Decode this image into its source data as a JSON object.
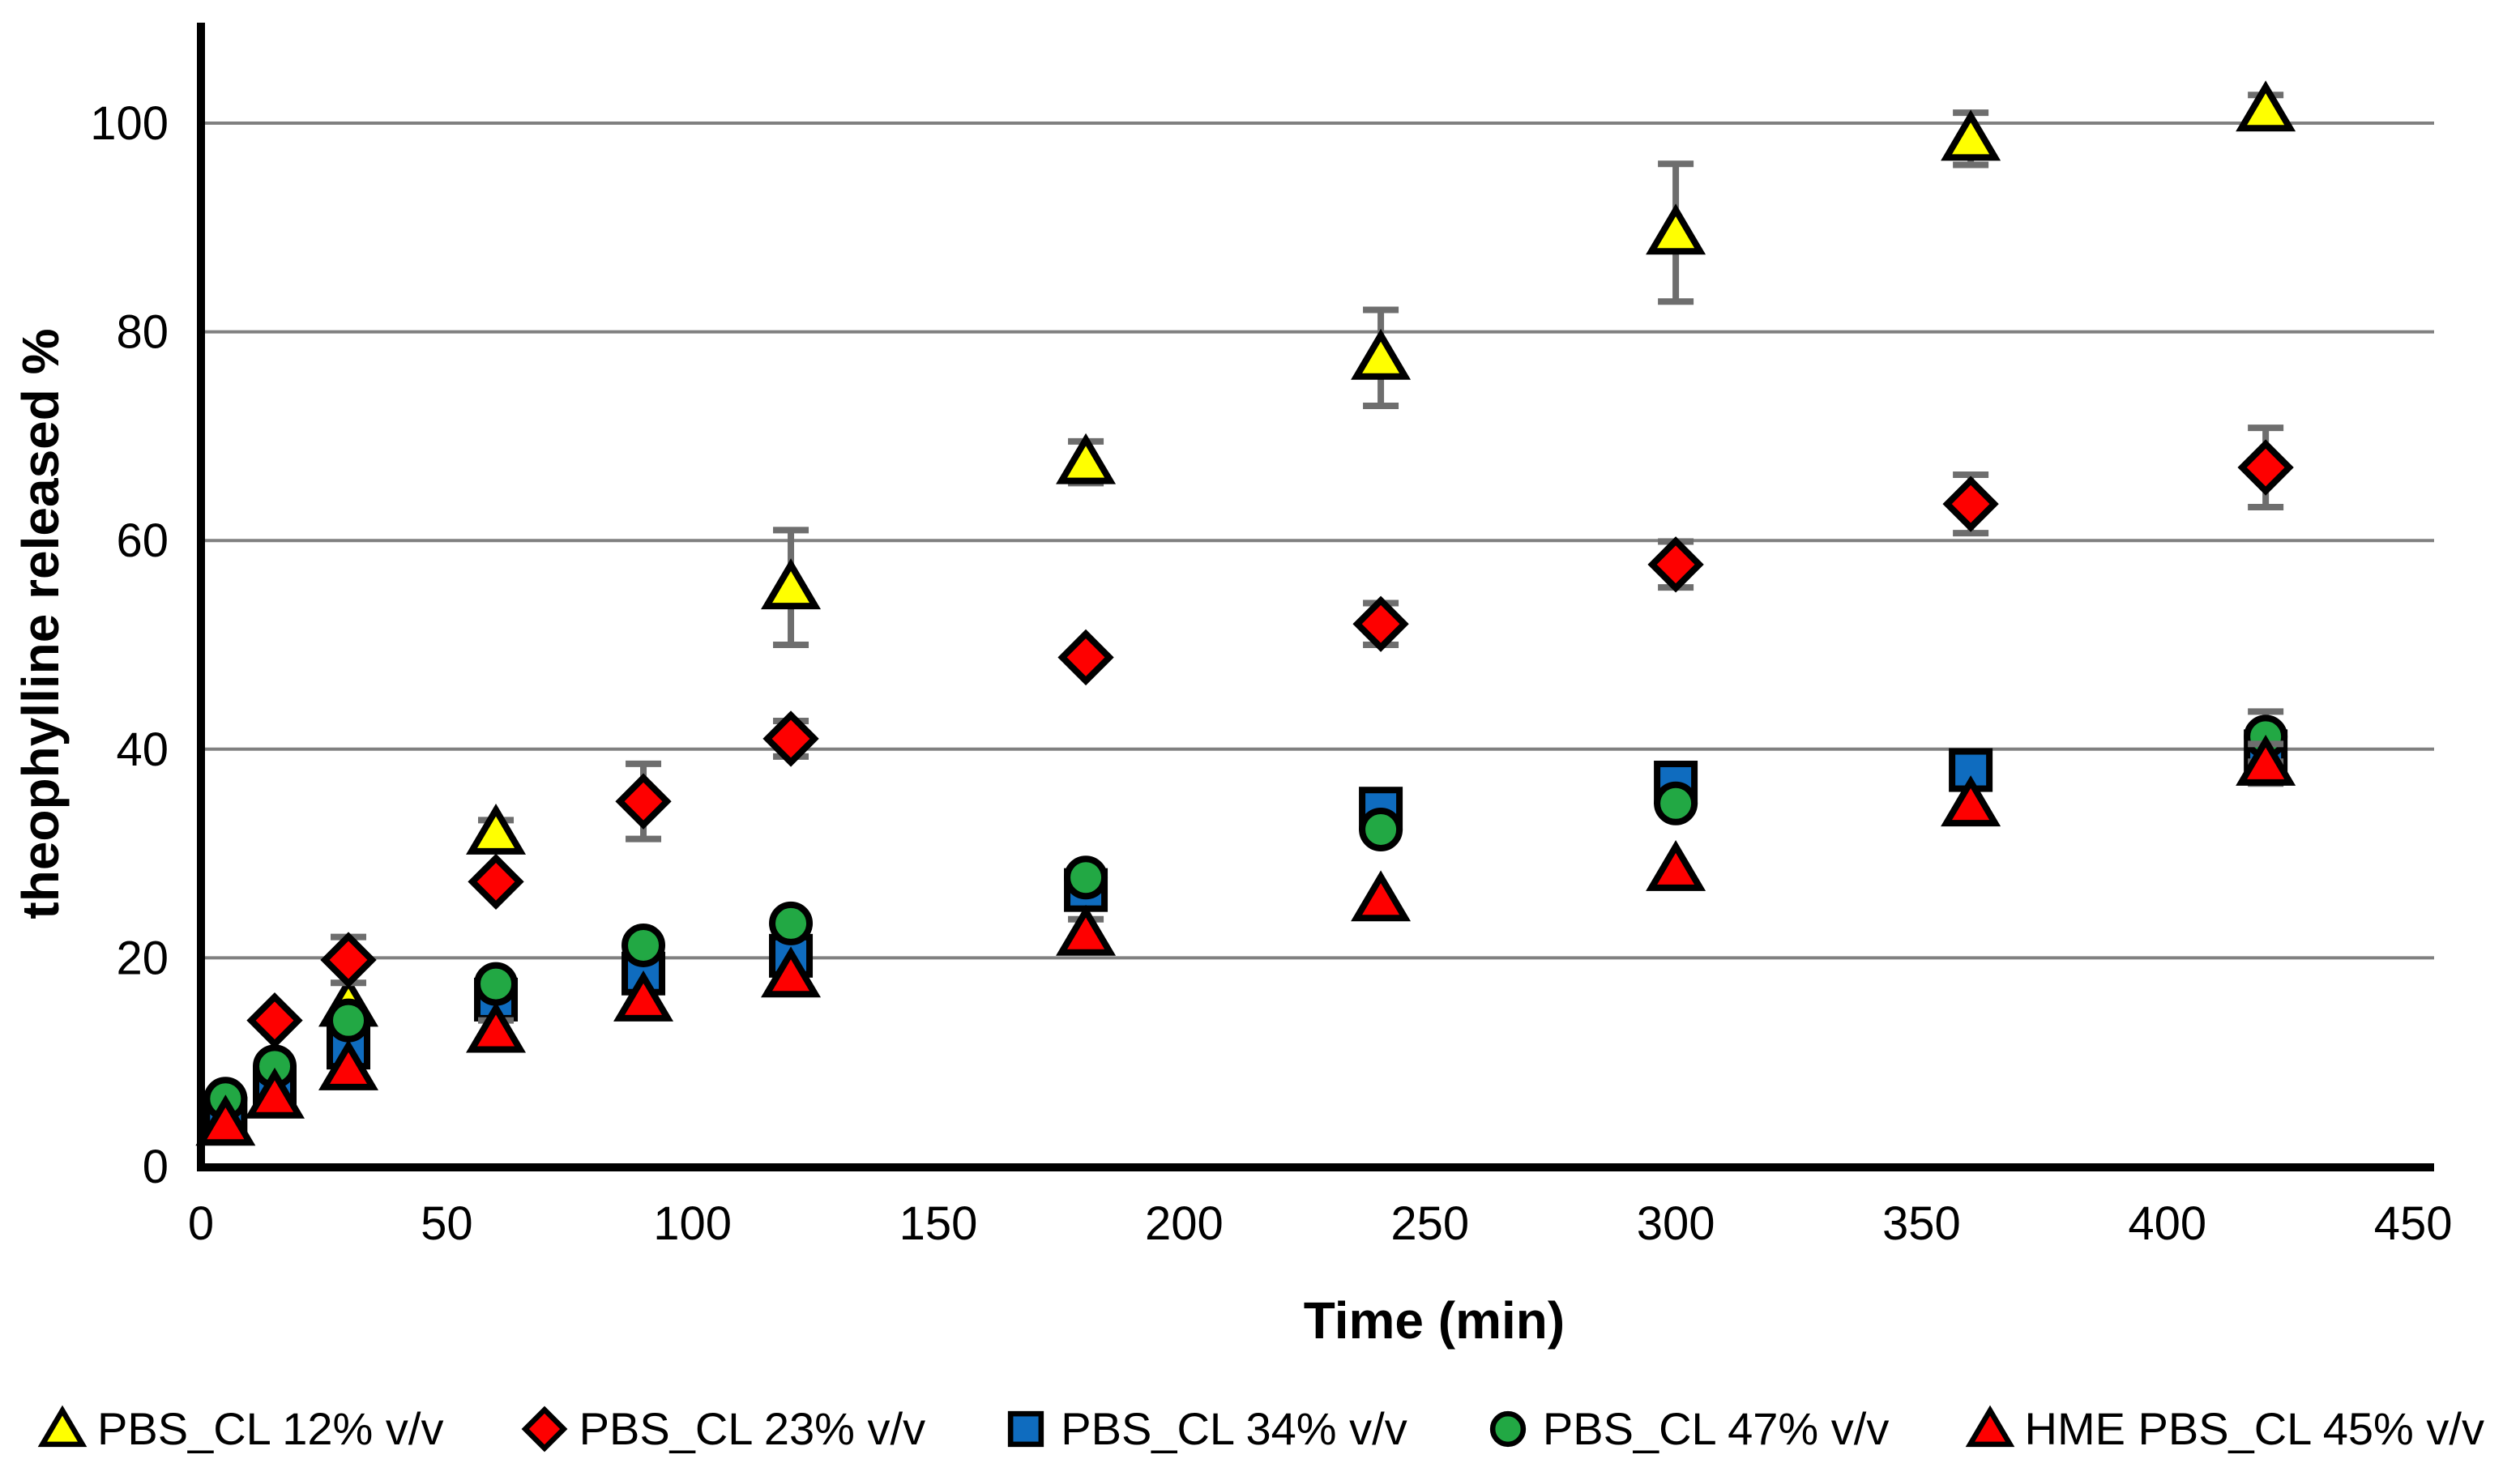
{
  "chart_data": {
    "type": "scatter",
    "title": "",
    "xlabel": "Time (min)",
    "ylabel": "theophylline released %",
    "xlim": [
      0,
      450
    ],
    "ylim": [
      0,
      110
    ],
    "x_ticks": [
      0,
      50,
      100,
      150,
      200,
      250,
      300,
      350,
      400,
      450
    ],
    "y_ticks": [
      0,
      20,
      40,
      60,
      80,
      100
    ],
    "grid": "horizontal gridlines at every 20, no vertical grid",
    "legend_position": "bottom",
    "background": "#FFFFFF",
    "axis_color": "#000000",
    "grid_color": "#808080",
    "error_bar_color": "#6E6E6E",
    "marker_outline_color": "#000000",
    "series": [
      {
        "name": "PBS_CL 12% v/v",
        "marker": "triangle",
        "fill": "#FFFF00",
        "points": [
          {
            "t": 30,
            "y": 15.5,
            "err": 0
          },
          {
            "t": 60,
            "y": 32.0,
            "err": 1.2
          },
          {
            "t": 120,
            "y": 55.5,
            "err": 5.5
          },
          {
            "t": 180,
            "y": 67.5,
            "err": 2.0
          },
          {
            "t": 240,
            "y": 77.5,
            "err": 4.6
          },
          {
            "t": 300,
            "y": 89.5,
            "err": 6.6
          },
          {
            "t": 360,
            "y": 98.5,
            "err": 2.5
          },
          {
            "t": 420,
            "y": 101.3,
            "err": 1.4
          }
        ]
      },
      {
        "name": "PBS_CL 23% v/v",
        "marker": "diamond",
        "fill": "#FE0000",
        "points": [
          {
            "t": 15,
            "y": 14.0,
            "err": 0
          },
          {
            "t": 30,
            "y": 19.8,
            "err": 2.2
          },
          {
            "t": 60,
            "y": 27.3,
            "err": 0
          },
          {
            "t": 90,
            "y": 35.0,
            "err": 3.6
          },
          {
            "t": 120,
            "y": 41.0,
            "err": 1.7
          },
          {
            "t": 180,
            "y": 48.8,
            "err": 0
          },
          {
            "t": 240,
            "y": 52.0,
            "err": 2.0
          },
          {
            "t": 300,
            "y": 57.7,
            "err": 2.2
          },
          {
            "t": 360,
            "y": 63.5,
            "err": 2.8
          },
          {
            "t": 420,
            "y": 67.0,
            "err": 3.8
          }
        ]
      },
      {
        "name": "PBS_CL 34% v/v",
        "marker": "square",
        "fill": "#0F6CBF",
        "points": [
          {
            "t": 5,
            "y": 4.6,
            "err": 0
          },
          {
            "t": 15,
            "y": 7.6,
            "err": 0
          },
          {
            "t": 30,
            "y": 11.4,
            "err": 0
          },
          {
            "t": 60,
            "y": 16.0,
            "err": 0
          },
          {
            "t": 90,
            "y": 18.5,
            "err": 0
          },
          {
            "t": 120,
            "y": 20.2,
            "err": 1.4
          },
          {
            "t": 180,
            "y": 26.5,
            "err": 0
          },
          {
            "t": 240,
            "y": 34.3,
            "err": 0
          },
          {
            "t": 300,
            "y": 36.8,
            "err": 0
          },
          {
            "t": 360,
            "y": 38.0,
            "err": 0
          },
          {
            "t": 420,
            "y": 39.8,
            "err": 0
          }
        ]
      },
      {
        "name": "PBS_CL 47% v/v",
        "marker": "circle",
        "fill": "#22A844",
        "points": [
          {
            "t": 5,
            "y": 6.5,
            "err": 0
          },
          {
            "t": 15,
            "y": 9.6,
            "err": 0
          },
          {
            "t": 30,
            "y": 14.0,
            "err": 0
          },
          {
            "t": 60,
            "y": 17.5,
            "err": 0
          },
          {
            "t": 90,
            "y": 21.2,
            "err": 0
          },
          {
            "t": 120,
            "y": 23.3,
            "err": 0
          },
          {
            "t": 180,
            "y": 27.7,
            "err": 0
          },
          {
            "t": 240,
            "y": 32.3,
            "err": 0
          },
          {
            "t": 300,
            "y": 34.8,
            "err": 0
          },
          {
            "t": 420,
            "y": 41.2,
            "err": 2.4
          }
        ]
      },
      {
        "name": "HME PBS_CL 45% v/v",
        "marker": "triangle",
        "fill": "#FE0000",
        "points": [
          {
            "t": 5,
            "y": 4.1,
            "err": 0
          },
          {
            "t": 15,
            "y": 6.7,
            "err": 0
          },
          {
            "t": 30,
            "y": 9.4,
            "err": 0
          },
          {
            "t": 60,
            "y": 13.0,
            "err": 1.0
          },
          {
            "t": 90,
            "y": 16.0,
            "err": 0
          },
          {
            "t": 120,
            "y": 18.3,
            "err": 0
          },
          {
            "t": 180,
            "y": 22.3,
            "err": 1.4
          },
          {
            "t": 240,
            "y": 25.6,
            "err": 0
          },
          {
            "t": 300,
            "y": 28.5,
            "err": 0
          },
          {
            "t": 360,
            "y": 34.7,
            "err": 0
          },
          {
            "t": 420,
            "y": 38.6,
            "err": 1.9
          }
        ]
      }
    ]
  }
}
